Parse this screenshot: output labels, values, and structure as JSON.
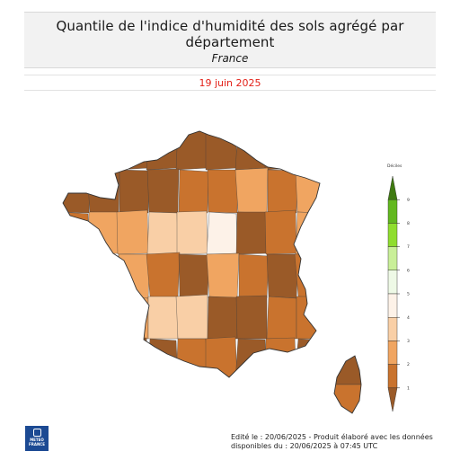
{
  "header": {
    "title": "Quantile de l'indice d'humidité des sols agrégé par département",
    "subtitle": "France",
    "date": "19 juin 2025"
  },
  "legend": {
    "title": "Déciles",
    "ticks": [
      "1",
      "2",
      "3",
      "4",
      "5",
      "6",
      "7",
      "8",
      "9"
    ],
    "colors": [
      "#9a5a28",
      "#c9732e",
      "#f0a561",
      "#f9cfa6",
      "#fdf2e8",
      "#eef9e6",
      "#c9ef98",
      "#8fdd2f",
      "#62b81f",
      "#3f7a11"
    ]
  },
  "footer": {
    "line1": "Edité le : 20/06/2025 - Produit élaboré avec les données",
    "line2": "disponibles du : 20/06/2025 à 07:45 UTC"
  },
  "logo": {
    "line1": "METEO",
    "line2": "FRANCE"
  },
  "colors": {
    "decile_1": "#9a5a28",
    "decile_2": "#c9732e",
    "decile_3": "#f0a561",
    "decile_4": "#f9cfa6",
    "decile_5": "#fdf2e8",
    "date_red": "#e32119",
    "logo_blue": "#1c4a93"
  },
  "region_deciles": [
    1,
    1,
    1,
    1,
    1,
    1,
    1,
    1,
    2,
    1,
    1,
    1,
    1,
    2,
    2,
    3,
    2,
    3,
    2,
    3,
    3,
    4,
    4,
    5,
    1,
    2,
    3,
    4,
    4,
    3,
    2,
    1,
    3,
    2,
    1,
    2,
    1,
    4,
    3,
    4,
    4,
    1,
    1,
    2,
    2,
    2,
    1,
    1,
    1,
    2,
    2,
    1,
    2,
    1
  ]
}
